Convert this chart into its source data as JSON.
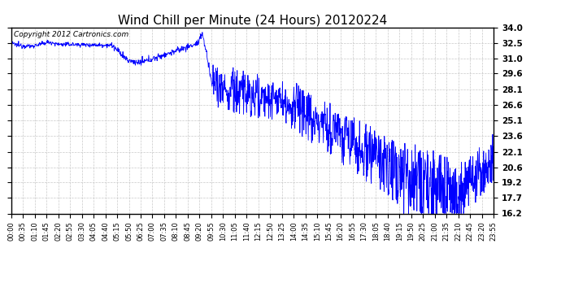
{
  "title": "Wind Chill per Minute (24 Hours) 20120224",
  "copyright_text": "Copyright 2012 Cartronics.com",
  "line_color": "#0000FF",
  "background_color": "#FFFFFF",
  "grid_color": "#BBBBBB",
  "ylim": [
    16.2,
    34.0
  ],
  "yticks": [
    16.2,
    17.7,
    19.2,
    20.6,
    22.1,
    23.6,
    25.1,
    26.6,
    28.1,
    29.6,
    31.0,
    32.5,
    34.0
  ],
  "xtick_labels": [
    "00:00",
    "00:35",
    "01:10",
    "01:45",
    "02:20",
    "02:55",
    "03:30",
    "04:05",
    "04:40",
    "05:15",
    "05:50",
    "06:25",
    "07:00",
    "07:35",
    "08:10",
    "08:45",
    "09:20",
    "09:55",
    "10:30",
    "11:05",
    "11:40",
    "12:15",
    "12:50",
    "13:25",
    "14:00",
    "14:35",
    "15:10",
    "15:45",
    "16:20",
    "16:55",
    "17:30",
    "18:05",
    "18:40",
    "19:15",
    "19:50",
    "20:25",
    "21:00",
    "21:35",
    "22:10",
    "22:45",
    "23:20",
    "23:55"
  ],
  "title_fontsize": 11,
  "copyright_fontsize": 6.5,
  "ylabel_fontsize": 7.5,
  "xlabel_fontsize": 6
}
